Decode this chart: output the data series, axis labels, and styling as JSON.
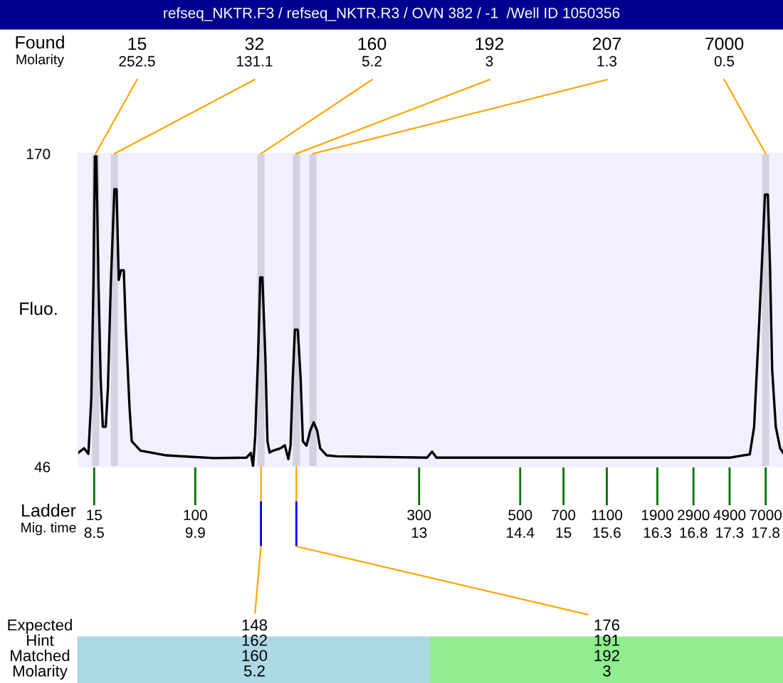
{
  "chart_data": {
    "type": "line",
    "title": "refseq_NKTR.F3 / refseq_NKTR.R3 / OVN 382 / -1  /Well ID 1050356",
    "ylabel": "Fluo.",
    "xlim": [
      8.28,
      18.04
    ],
    "ylim": [
      46,
      170
    ],
    "yticks": [
      46,
      170
    ],
    "xticks": [
      8.5,
      9.9,
      13,
      14.4,
      15,
      15.6,
      16.3,
      16.8,
      17.3,
      17.8
    ],
    "x": [
      8.28,
      8.36,
      8.42,
      8.46,
      8.49,
      8.51,
      8.53,
      8.56,
      8.59,
      8.62,
      8.66,
      8.69,
      8.73,
      8.78,
      8.81,
      8.84,
      8.87,
      8.91,
      8.94,
      8.99,
      9.02,
      9.14,
      9.5,
      10.16,
      10.61,
      10.67,
      10.7,
      10.73,
      10.77,
      10.8,
      10.83,
      10.87,
      10.9,
      10.93,
      10.98,
      11.08,
      11.14,
      11.19,
      11.22,
      11.25,
      11.28,
      11.32,
      11.36,
      11.39,
      11.44,
      11.49,
      11.54,
      11.59,
      11.63,
      11.72,
      11.86,
      13.11,
      13.18,
      13.24,
      14.29,
      17.31,
      17.58,
      17.64,
      17.71,
      17.75,
      17.79,
      17.83,
      17.86,
      17.89,
      17.94,
      18.0,
      18.04
    ],
    "series": [
      {
        "color": "#000000",
        "values": [
          51.5,
          53.3,
          51.1,
          73.1,
          118.2,
          168.9,
          168.9,
          118.2,
          80.6,
          61.8,
          61.8,
          77,
          118.2,
          155.9,
          155.9,
          120,
          123.8,
          123.8,
          99.6,
          69.3,
          56.1,
          52.4,
          50.5,
          49.4,
          49.6,
          51.5,
          46,
          58,
          90,
          121,
          121,
          90,
          56.1,
          51.6,
          52.4,
          53.3,
          54.5,
          49,
          54.5,
          80.6,
          100.3,
          100.3,
          80.6,
          56.1,
          54.3,
          60.1,
          63.6,
          60.1,
          53.3,
          50.5,
          50.1,
          49.6,
          52,
          49.6,
          49.6,
          49.6,
          50.9,
          61.8,
          103.1,
          127.7,
          153.8,
          153.8,
          125.7,
          84.3,
          61.8,
          53.3,
          51.6
        ]
      }
    ],
    "line_style": "solid",
    "marker": "none",
    "grid": false,
    "legend": false,
    "bands": [
      {
        "axis": "x",
        "from": 8.47,
        "to": 8.57,
        "color": "#d3d3e0"
      },
      {
        "axis": "x",
        "from": 8.73,
        "to": 8.83,
        "color": "#d3d3e0"
      },
      {
        "axis": "x",
        "from": 10.76,
        "to": 10.86,
        "color": "#d3d3e0"
      },
      {
        "axis": "x",
        "from": 11.25,
        "to": 11.35,
        "color": "#d3d3e0"
      },
      {
        "axis": "x",
        "from": 11.48,
        "to": 11.58,
        "color": "#d3d3e0"
      },
      {
        "axis": "x",
        "from": 17.75,
        "to": 17.85,
        "color": "#d3d3e0"
      }
    ],
    "annotations": [
      "Found\nMolarity",
      "Ladder\nMig. time",
      "Expected\nHint\nMatched\nMolarity",
      {
        "text": "15\n252.5",
        "x": 8.52,
        "y": 170
      },
      {
        "text": "32\n131.1",
        "x": 8.78,
        "y": 170
      },
      {
        "text": "160\n5.2",
        "x": 10.81,
        "y": 170
      },
      {
        "text": "192\n3",
        "x": 11.3,
        "y": 170
      },
      {
        "text": "207\n1.3",
        "x": 11.53,
        "y": 170
      },
      {
        "text": "7000\n0.5",
        "x": 17.8,
        "y": 170
      },
      {
        "text": "148\n162\n160\n5.2",
        "x": 10.81,
        "y": 46
      },
      {
        "text": "176\n191\n192\n3",
        "x": 11.3,
        "y": 46
      },
      "15",
      "100",
      "300",
      "500",
      "700",
      "1100",
      "1900",
      "2900",
      "4900",
      "7000"
    ]
  }
}
